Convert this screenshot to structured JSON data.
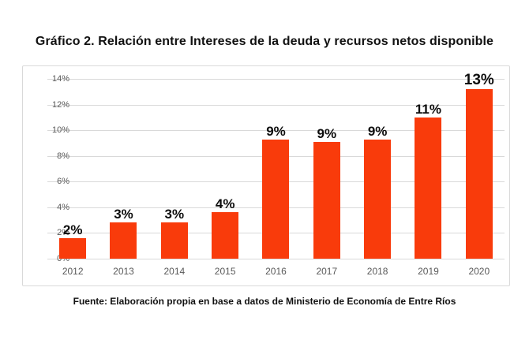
{
  "title": "Gráfico 2. Relación entre Intereses de la deuda y recursos netos disponible",
  "source": "Fuente: Elaboración propia en base a datos de Ministerio de Economía de Entre Ríos",
  "colors": {
    "bar": "#f93b0b",
    "gridline": "#d9d9d9",
    "chart_border": "#d9d9d9",
    "tick_label": "#595959",
    "text": "#111111"
  },
  "chart_data": {
    "type": "bar",
    "title": "Gráfico 2. Relación entre Intereses de la deuda y recursos netos disponible",
    "categories": [
      "2012",
      "2013",
      "2014",
      "2015",
      "2016",
      "2017",
      "2018",
      "2019",
      "2020"
    ],
    "values": [
      1.6,
      2.8,
      2.8,
      3.6,
      9.3,
      9.1,
      9.3,
      11.0,
      13.2
    ],
    "data_labels": [
      "2%",
      "3%",
      "3%",
      "4%",
      "9%",
      "9%",
      "9%",
      "11%",
      "13%"
    ],
    "xlabel": "",
    "ylabel": "",
    "ylim": [
      0,
      14
    ],
    "ytick_step": 2,
    "ytick_labels": [
      "0%",
      "2%",
      "4%",
      "6%",
      "8%",
      "10%",
      "12%",
      "14%"
    ],
    "grid": true,
    "legend": false,
    "source_note": "Fuente: Elaboración propia en base a datos de Ministerio de Economía de Entre Ríos"
  }
}
